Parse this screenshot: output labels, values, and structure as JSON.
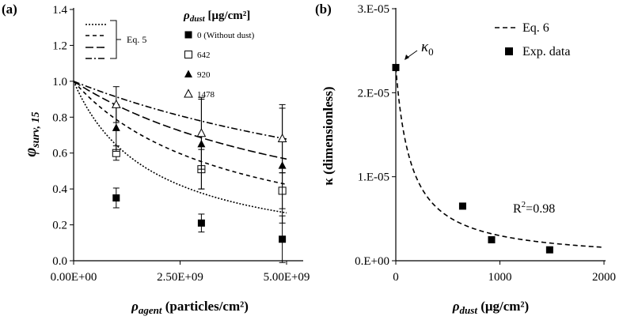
{
  "chart_data": [
    {
      "type": "scatter",
      "panel_label": "(a)",
      "ylabel": "φsurv, 15",
      "xlabel": "ρagent (particles/cm²)",
      "ylabel_parts": {
        "main": "φ",
        "sub": "surv, 15"
      },
      "xlabel_parts": {
        "main": "ρ",
        "sub": "agent",
        "rest": " (particles/cm²)"
      },
      "xlim": [
        0,
        5000000000
      ],
      "ylim": [
        0,
        1.4
      ],
      "x_ticks": [
        {
          "value": 0,
          "label": "0.00E+00"
        },
        {
          "value": 2500000000,
          "label": "2.50E+09"
        },
        {
          "value": 5000000000,
          "label": "5.00E+09"
        }
      ],
      "y_ticks": [
        {
          "value": 0,
          "label": "0.0"
        },
        {
          "value": 0.2,
          "label": "0.2"
        },
        {
          "value": 0.4,
          "label": "0.4"
        },
        {
          "value": 0.6,
          "label": "0.6"
        },
        {
          "value": 0.8,
          "label": "0.8"
        },
        {
          "value": 1.0,
          "label": "1.0"
        },
        {
          "value": 1.2,
          "label": "1.2"
        },
        {
          "value": 1.4,
          "label": "1.4"
        }
      ],
      "legend_title": "ρdust [μg/cm²]",
      "legend_title_parts": {
        "main": "ρ",
        "sub": "dust",
        "rest": " [μg/cm²]"
      },
      "legend_model_label": "Eq. 5",
      "series": [
        {
          "name": "0 (Without dust)",
          "marker": "filled-square",
          "line": "dotted",
          "model_k": 0.55,
          "x": [
            1000000000,
            3000000000,
            4900000000
          ],
          "y": [
            0.35,
            0.21,
            0.12
          ],
          "err": [
            0.055,
            0.05,
            0.13
          ]
        },
        {
          "name": "642",
          "marker": "open-square",
          "line": "short-dash",
          "model_k": 0.27,
          "x": [
            1000000000,
            3000000000,
            4900000000
          ],
          "y": [
            0.6,
            0.51,
            0.39
          ],
          "err": [
            0.04,
            0.11,
            0.1
          ]
        },
        {
          "name": "920",
          "marker": "filled-triangle",
          "line": "long-dash",
          "model_k": 0.153,
          "x": [
            1000000000,
            3000000000,
            4900000000
          ],
          "y": [
            0.74,
            0.65,
            0.53
          ],
          "err": [
            0.13,
            0.25,
            0.32
          ]
        },
        {
          "name": "1478",
          "marker": "open-triangle",
          "line": "dash-dot",
          "model_k": 0.095,
          "x": [
            1000000000,
            3000000000,
            4900000000
          ],
          "y": [
            0.87,
            0.71,
            0.68
          ],
          "err": [
            0.1,
            0.2,
            0.19
          ]
        }
      ]
    },
    {
      "type": "scatter",
      "panel_label": "(b)",
      "ylabel": "κ (dimensionless)",
      "xlabel": "ρdust (μg/cm²)",
      "xlabel_parts": {
        "main": "ρ",
        "sub": "dust",
        "rest": " (μg/cm²)"
      },
      "xlim": [
        0,
        2000
      ],
      "ylim": [
        0,
        3e-05
      ],
      "x_ticks": [
        {
          "value": 0,
          "label": "0"
        },
        {
          "value": 1000,
          "label": "1000"
        },
        {
          "value": 2000,
          "label": "2000"
        }
      ],
      "y_ticks": [
        {
          "value": 0,
          "label": "0.E+00"
        },
        {
          "value": 1e-05,
          "label": "1.E-05"
        },
        {
          "value": 2e-05,
          "label": "2.E-05"
        },
        {
          "value": 3e-05,
          "label": "3.E-05"
        }
      ],
      "series": [
        {
          "name": "Eq. 6",
          "line": "dashed",
          "model_kappa0": 2.3e-05,
          "model_a": 0.0067
        },
        {
          "name": "Exp. data",
          "marker": "filled-square",
          "x": [
            0,
            642,
            920,
            1478
          ],
          "y": [
            2.3e-05,
            6.5e-06,
            2.5e-06,
            1.3e-06
          ]
        }
      ],
      "annotations": {
        "kappa0_main": "κ",
        "kappa0_sub": "0",
        "r2": "R",
        "r2_sup": "2",
        "r2_value": "=0.98"
      }
    }
  ]
}
